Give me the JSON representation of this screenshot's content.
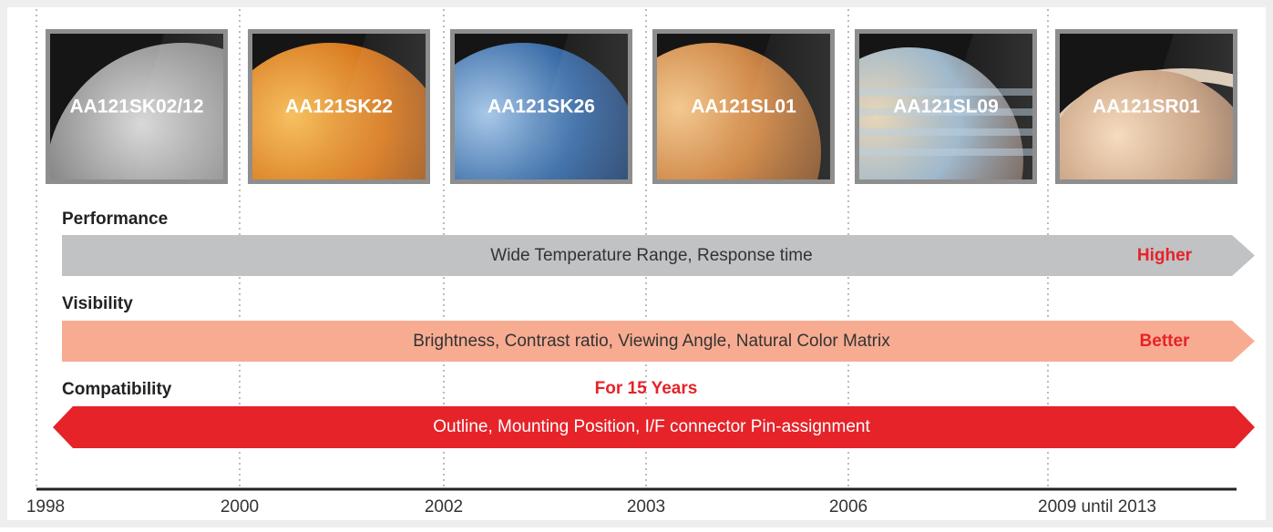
{
  "panels": [
    {
      "label": "AA121SK02/12"
    },
    {
      "label": "AA121SK22"
    },
    {
      "label": "AA121SK26"
    },
    {
      "label": "AA121SL01"
    },
    {
      "label": "AA121SL09"
    },
    {
      "label": "AA121SR01"
    }
  ],
  "rows": [
    {
      "label": "Performance",
      "bar": "Wide Temperature Range, Response time",
      "tag": "Higher"
    },
    {
      "label": "Visibility",
      "bar": "Brightness, Contrast ratio, Viewing Angle, Natural Color Matrix",
      "tag": "Better"
    },
    {
      "label": "Compatibility",
      "bar": "Outline, Mounting Position, I/F connector Pin-assignment",
      "note": "For 15 Years"
    }
  ],
  "timeline": [
    "1998",
    "2000",
    "2002",
    "2003",
    "2006",
    "2009 until 2013"
  ]
}
